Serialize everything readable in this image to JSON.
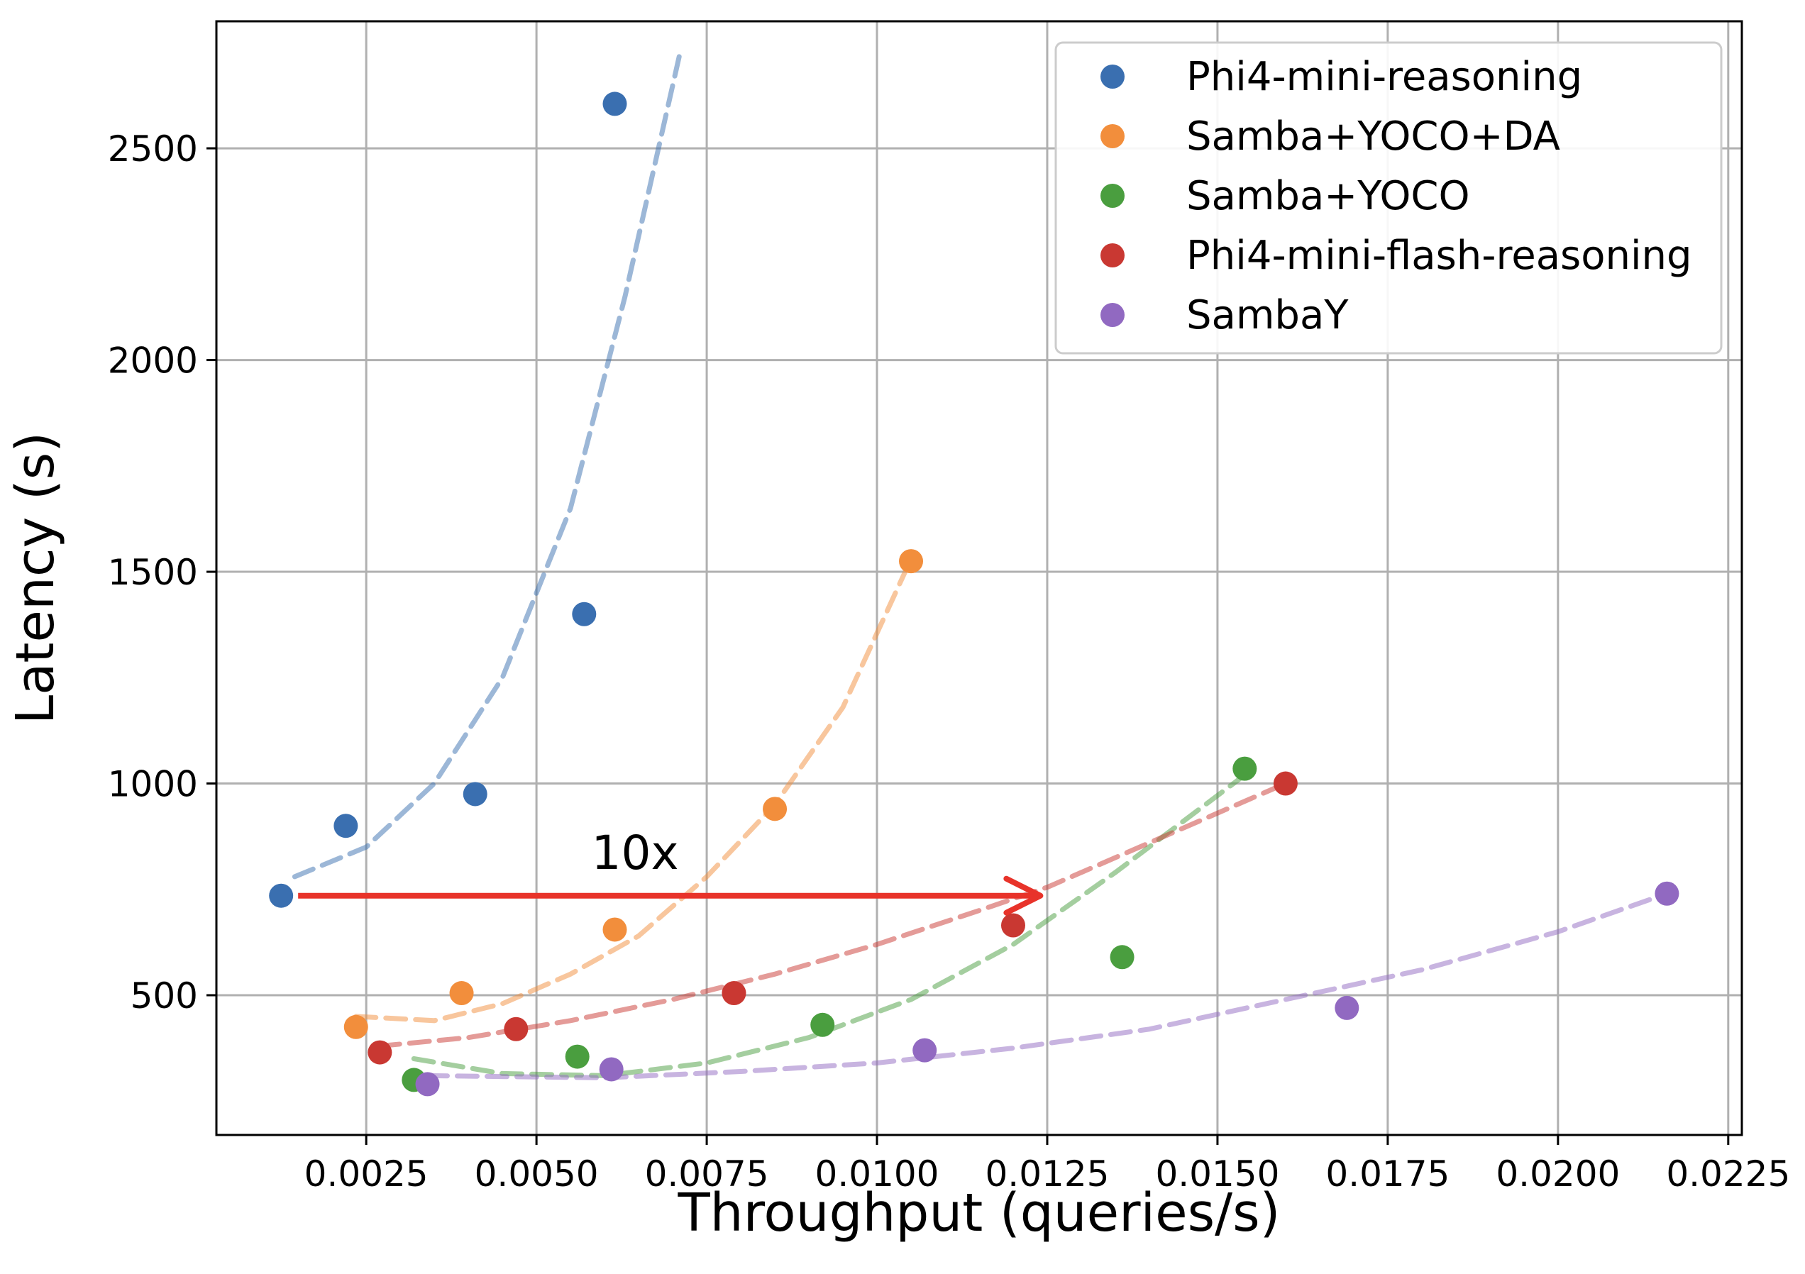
{
  "chart_data": {
    "type": "scatter",
    "title": "",
    "xlabel": "Throughput (queries/s)",
    "ylabel": "Latency (s)",
    "xlim": [
      0.0003,
      0.0227
    ],
    "ylim": [
      170,
      2800
    ],
    "xticks": [
      0.0025,
      0.005,
      0.0075,
      0.01,
      0.0125,
      0.015,
      0.0175,
      0.02,
      0.0225
    ],
    "xtick_labels": [
      "0.0025",
      "0.0050",
      "0.0075",
      "0.0100",
      "0.0125",
      "0.0150",
      "0.0175",
      "0.0200",
      "0.0225"
    ],
    "yticks": [
      500,
      1000,
      1500,
      2000,
      2500
    ],
    "ytick_labels": [
      "500",
      "1000",
      "1500",
      "2000",
      "2500"
    ],
    "grid": true,
    "legend_position": "top-right",
    "series": [
      {
        "name": "Phi4-mini-reasoning",
        "color": "#3a6fb0",
        "points": [
          [
            0.00125,
            735
          ],
          [
            0.0022,
            900
          ],
          [
            0.0041,
            975
          ],
          [
            0.0057,
            1400
          ],
          [
            0.00615,
            2605
          ]
        ],
        "trend": [
          [
            0.00145,
            780
          ],
          [
            0.0025,
            850
          ],
          [
            0.0035,
            1000
          ],
          [
            0.0045,
            1250
          ],
          [
            0.0055,
            1650
          ],
          [
            0.0063,
            2150
          ],
          [
            0.0071,
            2720
          ]
        ]
      },
      {
        "name": "Samba+YOCO+DA",
        "color": "#f28e3c",
        "points": [
          [
            0.00235,
            425
          ],
          [
            0.0039,
            505
          ],
          [
            0.00615,
            655
          ],
          [
            0.0085,
            940
          ],
          [
            0.0105,
            1525
          ]
        ],
        "trend": [
          [
            0.00235,
            450
          ],
          [
            0.0035,
            440
          ],
          [
            0.0045,
            480
          ],
          [
            0.0055,
            550
          ],
          [
            0.0065,
            640
          ],
          [
            0.0075,
            780
          ],
          [
            0.0085,
            950
          ],
          [
            0.0095,
            1180
          ],
          [
            0.0105,
            1530
          ]
        ]
      },
      {
        "name": "Samba+YOCO",
        "color": "#4a9e3f",
        "points": [
          [
            0.0032,
            300
          ],
          [
            0.0056,
            355
          ],
          [
            0.0092,
            430
          ],
          [
            0.0136,
            590
          ],
          [
            0.0154,
            1035
          ]
        ],
        "trend": [
          [
            0.0032,
            350
          ],
          [
            0.0045,
            315
          ],
          [
            0.006,
            310
          ],
          [
            0.0075,
            340
          ],
          [
            0.009,
            400
          ],
          [
            0.0105,
            490
          ],
          [
            0.012,
            620
          ],
          [
            0.0135,
            790
          ],
          [
            0.0154,
            1020
          ]
        ]
      },
      {
        "name": "Phi4-mini-flash-reasoning",
        "color": "#c93832",
        "points": [
          [
            0.0027,
            365
          ],
          [
            0.0047,
            420
          ],
          [
            0.0079,
            505
          ],
          [
            0.012,
            665
          ],
          [
            0.016,
            1000
          ]
        ],
        "trend": [
          [
            0.0027,
            380
          ],
          [
            0.004,
            400
          ],
          [
            0.0055,
            440
          ],
          [
            0.007,
            490
          ],
          [
            0.0085,
            550
          ],
          [
            0.01,
            620
          ],
          [
            0.0115,
            700
          ],
          [
            0.0125,
            755
          ],
          [
            0.014,
            860
          ],
          [
            0.016,
            1000
          ]
        ]
      },
      {
        "name": "SambaY",
        "color": "#9169c1",
        "points": [
          [
            0.0034,
            290
          ],
          [
            0.0061,
            325
          ],
          [
            0.0107,
            370
          ],
          [
            0.0169,
            470
          ],
          [
            0.0216,
            740
          ]
        ],
        "trend": [
          [
            0.0034,
            310
          ],
          [
            0.006,
            305
          ],
          [
            0.008,
            320
          ],
          [
            0.01,
            340
          ],
          [
            0.012,
            375
          ],
          [
            0.014,
            420
          ],
          [
            0.016,
            490
          ],
          [
            0.018,
            560
          ],
          [
            0.02,
            650
          ],
          [
            0.0216,
            740
          ]
        ]
      }
    ],
    "annotation": {
      "text": "10x",
      "color": "#e8332a",
      "arrow_from": [
        0.0015,
        735
      ],
      "arrow_to": [
        0.0124,
        735
      ]
    }
  }
}
